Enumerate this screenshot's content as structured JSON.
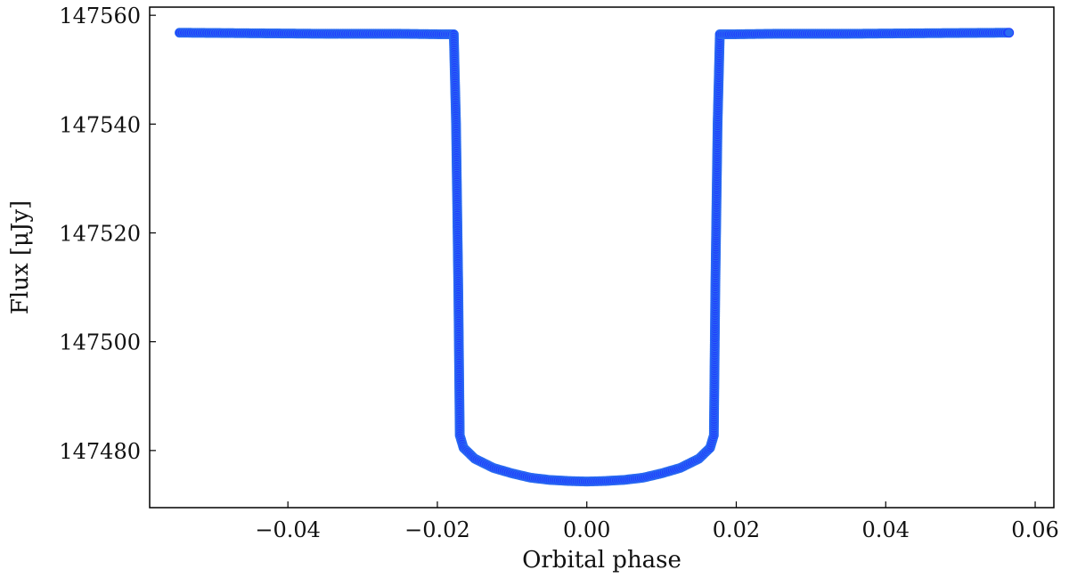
{
  "chart_data": {
    "type": "scatter",
    "xlabel": "Orbital phase",
    "ylabel": "Flux [μJy]",
    "xlim": [
      -0.0585,
      0.0625
    ],
    "ylim": [
      147469.5,
      147561.5
    ],
    "xticks": [
      -0.04,
      -0.02,
      0.0,
      0.02,
      0.04,
      0.06
    ],
    "xtick_labels": [
      "−0.04",
      "−0.02",
      "0.00",
      "0.02",
      "0.04",
      "0.06"
    ],
    "yticks": [
      147480,
      147500,
      147520,
      147540,
      147560
    ],
    "ytick_labels": [
      "147480",
      "147500",
      "147520",
      "147540",
      "147560"
    ],
    "grid": false,
    "marker_color": "#1f3cff",
    "marker_edge_color": "#2a6cf0",
    "series": [
      {
        "x": [
          -0.0545,
          -0.045,
          -0.035,
          -0.025,
          -0.019,
          -0.0178,
          -0.0175,
          -0.0172,
          -0.017,
          -0.0165,
          -0.015,
          -0.0125,
          -0.01,
          -0.0075,
          -0.005,
          -0.0025,
          0.0,
          0.0025,
          0.005,
          0.0075,
          0.01,
          0.0125,
          0.015,
          0.0165,
          0.017,
          0.0172,
          0.0175,
          0.0178,
          0.019,
          0.025,
          0.035,
          0.045,
          0.0565
        ],
        "y": [
          147556.8,
          147556.7,
          147556.6,
          147556.6,
          147556.5,
          147556.5,
          147540.0,
          147510.0,
          147482.8,
          147480.5,
          147478.5,
          147476.8,
          147475.8,
          147475.0,
          147474.6,
          147474.4,
          147474.3,
          147474.4,
          147474.6,
          147475.0,
          147475.8,
          147476.8,
          147478.5,
          147480.5,
          147482.8,
          147510.0,
          147540.0,
          147556.5,
          147556.5,
          147556.6,
          147556.6,
          147556.7,
          147556.8
        ]
      }
    ]
  }
}
